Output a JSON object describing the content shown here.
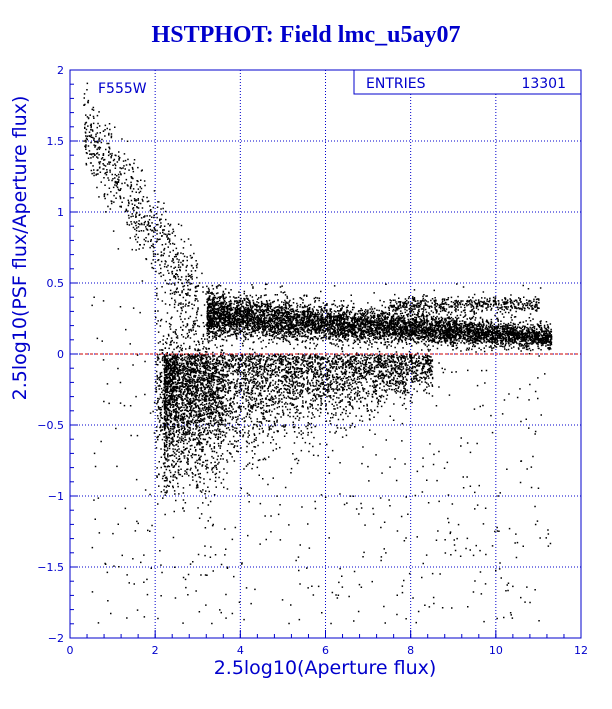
{
  "page": {
    "title": "HSTPHOT: Field lmc_u5ay07"
  },
  "stats_box": {
    "label": "ENTRIES",
    "value": "13301"
  },
  "colors": {
    "frame": "#0000cc",
    "grid": "#0000cc",
    "points": "#000000",
    "zero_line": "#cc0000",
    "background": "#ffffff"
  },
  "chart_data": {
    "type": "scatter",
    "title": "HSTPHOT: Field lmc_u5ay07",
    "xlabel": "2.5log10(Aperture flux)",
    "ylabel": "2.5log10(PSF flux/Aperture flux)",
    "annotation": "F555W",
    "xlim": [
      0,
      12
    ],
    "ylim": [
      -2,
      2
    ],
    "xticks": [
      0,
      2,
      4,
      6,
      8,
      10,
      12
    ],
    "yticks": [
      -2,
      -1.5,
      -1,
      -0.5,
      0,
      0.5,
      1,
      1.5,
      2
    ],
    "xtick_labels": [
      "0",
      "2",
      "4",
      "6",
      "8",
      "10",
      "12"
    ],
    "ytick_labels": [
      "−2",
      "−1.5",
      "−1",
      "−0.5",
      "0",
      "0.5",
      "1",
      "1.5",
      "2"
    ],
    "grid": true,
    "reference_line_y": 0,
    "entries": 13301,
    "distribution": {
      "description_points": "dense locus near y≈0.1 for x 3.2–11.3, broad scatter below for x 2–8, sparse high-y cloud for x 0.3–3",
      "main_locus": {
        "x_range": [
          3.2,
          11.3
        ],
        "y_center_start": 0.28,
        "y_center_end": 0.12
      },
      "upper_branch": {
        "x_range": [
          7.5,
          11.0
        ],
        "y": 0.35
      },
      "lower_cloud": {
        "x_range": [
          2.2,
          8.5
        ],
        "y_range": [
          -1.2,
          0.0
        ]
      },
      "bright_cloud": {
        "x_range": [
          0.3,
          3.0
        ],
        "y_range": [
          0.3,
          1.9
        ]
      }
    }
  }
}
